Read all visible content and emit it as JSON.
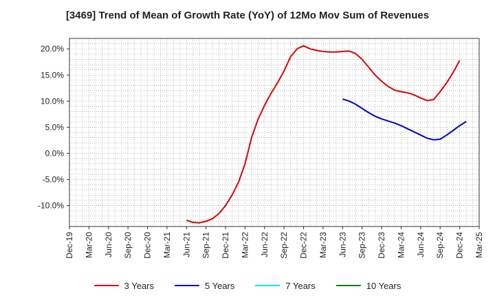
{
  "chart_data": {
    "type": "line",
    "title": "[3469]  Trend of Mean of Growth Rate (YoY) of 12Mo Mov Sum of Revenues",
    "xlabel": "",
    "ylabel": "",
    "ylim": [
      -14.0,
      22.0
    ],
    "yticks": [
      20.0,
      15.0,
      10.0,
      5.0,
      0.0,
      -5.0,
      -10.0
    ],
    "ytick_labels": [
      "20.0%",
      "15.0%",
      "10.0%",
      "5.0%",
      "0.0%",
      "-5.0%",
      "-10.0%"
    ],
    "x_start": "Dec-19",
    "x_months": 63,
    "xtick_labels": [
      "Dec-19",
      "Mar-20",
      "Jun-20",
      "Sep-20",
      "Dec-20",
      "Mar-21",
      "Jun-21",
      "Sep-21",
      "Dec-21",
      "Mar-22",
      "Jun-22",
      "Sep-22",
      "Dec-22",
      "Mar-23",
      "Jun-23",
      "Sep-23",
      "Dec-23",
      "Mar-24",
      "Jun-24",
      "Sep-24",
      "Dec-24",
      "Mar-25"
    ],
    "grid": true,
    "legend_position": "bottom",
    "series": [
      {
        "name": "3 Years",
        "color": "#dd0000",
        "start_index": 18,
        "values": [
          -12.8,
          -13.2,
          -13.3,
          -13.0,
          -12.5,
          -11.5,
          -10.0,
          -8.0,
          -5.5,
          -2.0,
          3.0,
          6.5,
          9.2,
          11.5,
          13.5,
          15.8,
          18.5,
          20.0,
          20.6,
          20.0,
          19.7,
          19.5,
          19.4,
          19.4,
          19.5,
          19.6,
          19.1,
          18.0,
          16.5,
          15.0,
          13.8,
          12.8,
          12.1,
          11.8,
          11.6,
          11.2,
          10.6,
          10.1,
          10.3,
          11.8,
          13.5,
          15.5,
          17.8
        ]
      },
      {
        "name": "5 Years",
        "color": "#0000cc",
        "start_index": 42,
        "values": [
          10.4,
          10.0,
          9.4,
          8.6,
          7.8,
          7.1,
          6.6,
          6.2,
          5.8,
          5.3,
          4.7,
          4.1,
          3.5,
          2.9,
          2.6,
          2.7,
          3.5,
          4.4,
          5.3,
          6.1
        ]
      },
      {
        "name": "7 Years",
        "color": "#00e5ee",
        "start_index": 0,
        "values": []
      },
      {
        "name": "10 Years",
        "color": "#008000",
        "start_index": 0,
        "values": []
      }
    ]
  }
}
